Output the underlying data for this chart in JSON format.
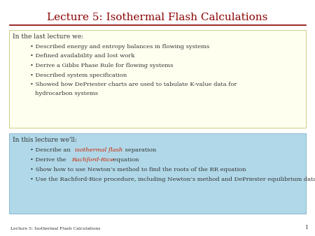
{
  "title": "Lecture 5: Isothermal Flash Calculations",
  "title_color": "#8B0000",
  "title_fontsize": 11,
  "bg_color": "#f0f0f0",
  "line_color": "#8B0000",
  "box1_bg": "#FFFFF0",
  "box1_border": "#cccc88",
  "box1_header": "In the last lecture we:",
  "box1_items": [
    "Described energy and entropy balances in flowing systems",
    "Defined availability and lost work",
    "Derive a Gibbs Phase Rule for flowing systems",
    "Described system specification",
    "Showed how DePriester charts are used to tabulate K-value data for\nhydrocarbon systems"
  ],
  "box2_bg": "#b0d8e8",
  "box2_border": "#88bbcc",
  "box2_header": "In this lecture we'll:",
  "box2_items_plain": [
    [
      "Describe an ",
      "isothermal flash",
      " separation"
    ],
    [
      "Derive the ",
      "Rachford-Rice",
      " equation"
    ],
    [
      "Show how to use Newton’s method to find the roots of the RR equation"
    ],
    [
      "Use the Rachford-Rice procedure, including Newton’s method and DePriester equilibrium data to solve a hydrocarbon isothermal flash problem."
    ]
  ],
  "footer_text": "Lecture 5: Isothermal Flash Calculations",
  "footer_fontsize": 4.5,
  "page_number": "1",
  "text_color": "#333333",
  "highlight_color": "#CC2200",
  "item_fontsize": 6.0,
  "header_fontsize": 6.5
}
